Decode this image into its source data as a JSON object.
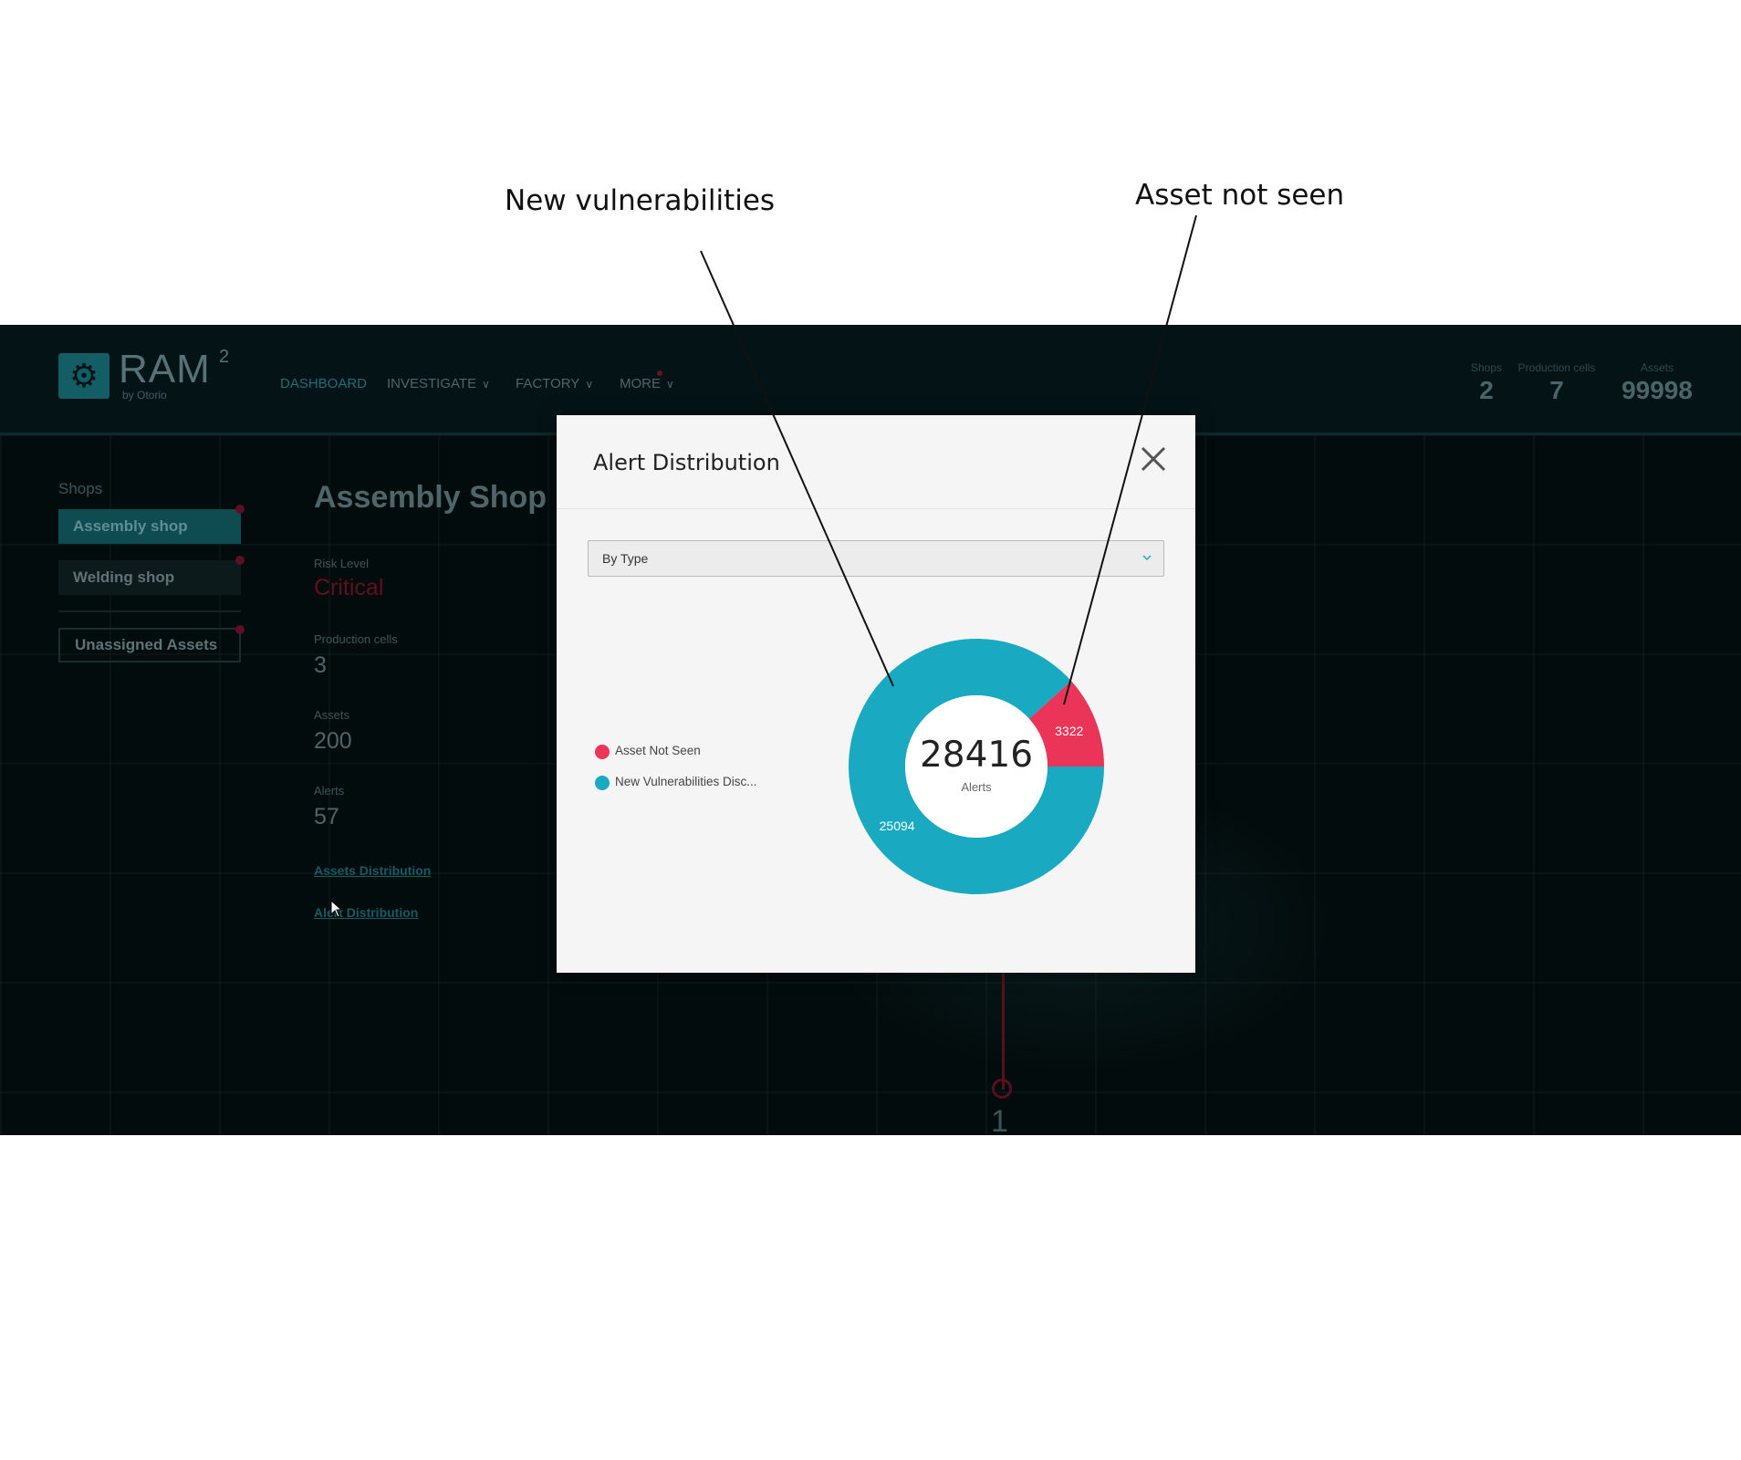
{
  "annotations": {
    "new_vulnerabilities": "New vulnerabilities",
    "asset_not_seen": "Asset not seen"
  },
  "app": {
    "logo": {
      "name": "RAM",
      "superscript": "2",
      "byline": "by Otorio"
    },
    "nav": [
      {
        "label": "DASHBOARD",
        "active": true,
        "has_chevron": false
      },
      {
        "label": "INVESTIGATE",
        "active": false,
        "has_chevron": true
      },
      {
        "label": "FACTORY",
        "active": false,
        "has_chevron": true
      },
      {
        "label": "MORE",
        "active": false,
        "has_chevron": true
      }
    ],
    "stats": [
      {
        "label": "Shops",
        "value": "2"
      },
      {
        "label": "Production cells",
        "value": "7"
      },
      {
        "label": "Assets",
        "value": "99998"
      }
    ],
    "sidebar": {
      "title": "Shops",
      "shops": [
        "Assembly shop",
        "Welding shop"
      ],
      "unassigned": "Unassigned Assets"
    },
    "shop_detail": {
      "heading": "Assembly Shop R",
      "risk_level_label": "Risk Level",
      "risk_level_value": "Critical",
      "production_cells_label": "Production cells",
      "production_cells_value": "3",
      "assets_label": "Assets",
      "assets_value": "200",
      "alerts_label": "Alerts",
      "alerts_value": "57",
      "assets_distribution_link": "Assets Distribution",
      "alert_distribution_link": "Alert Distribution"
    },
    "map_node_label": "1"
  },
  "modal": {
    "title": "Alert Distribution",
    "dropdown_value": "By Type",
    "total": "28416",
    "total_label": "Alerts",
    "legend": [
      {
        "label": "Asset Not Seen",
        "color": "#ea3558"
      },
      {
        "label": "New Vulnerabilities Disc...",
        "color": "#19aac1"
      }
    ]
  },
  "chart_data": {
    "type": "pie",
    "categories": [
      "Asset Not Seen",
      "New Vulnerabilities Disc..."
    ],
    "values": [
      3322,
      25094
    ],
    "colors": [
      "#ea3558",
      "#19aac1"
    ],
    "center_value": 28416,
    "center_label": "Alerts"
  },
  "colors": {
    "accent_teal": "#19aac1",
    "alert_red": "#ea3558",
    "background_dark": "#030c0d"
  }
}
